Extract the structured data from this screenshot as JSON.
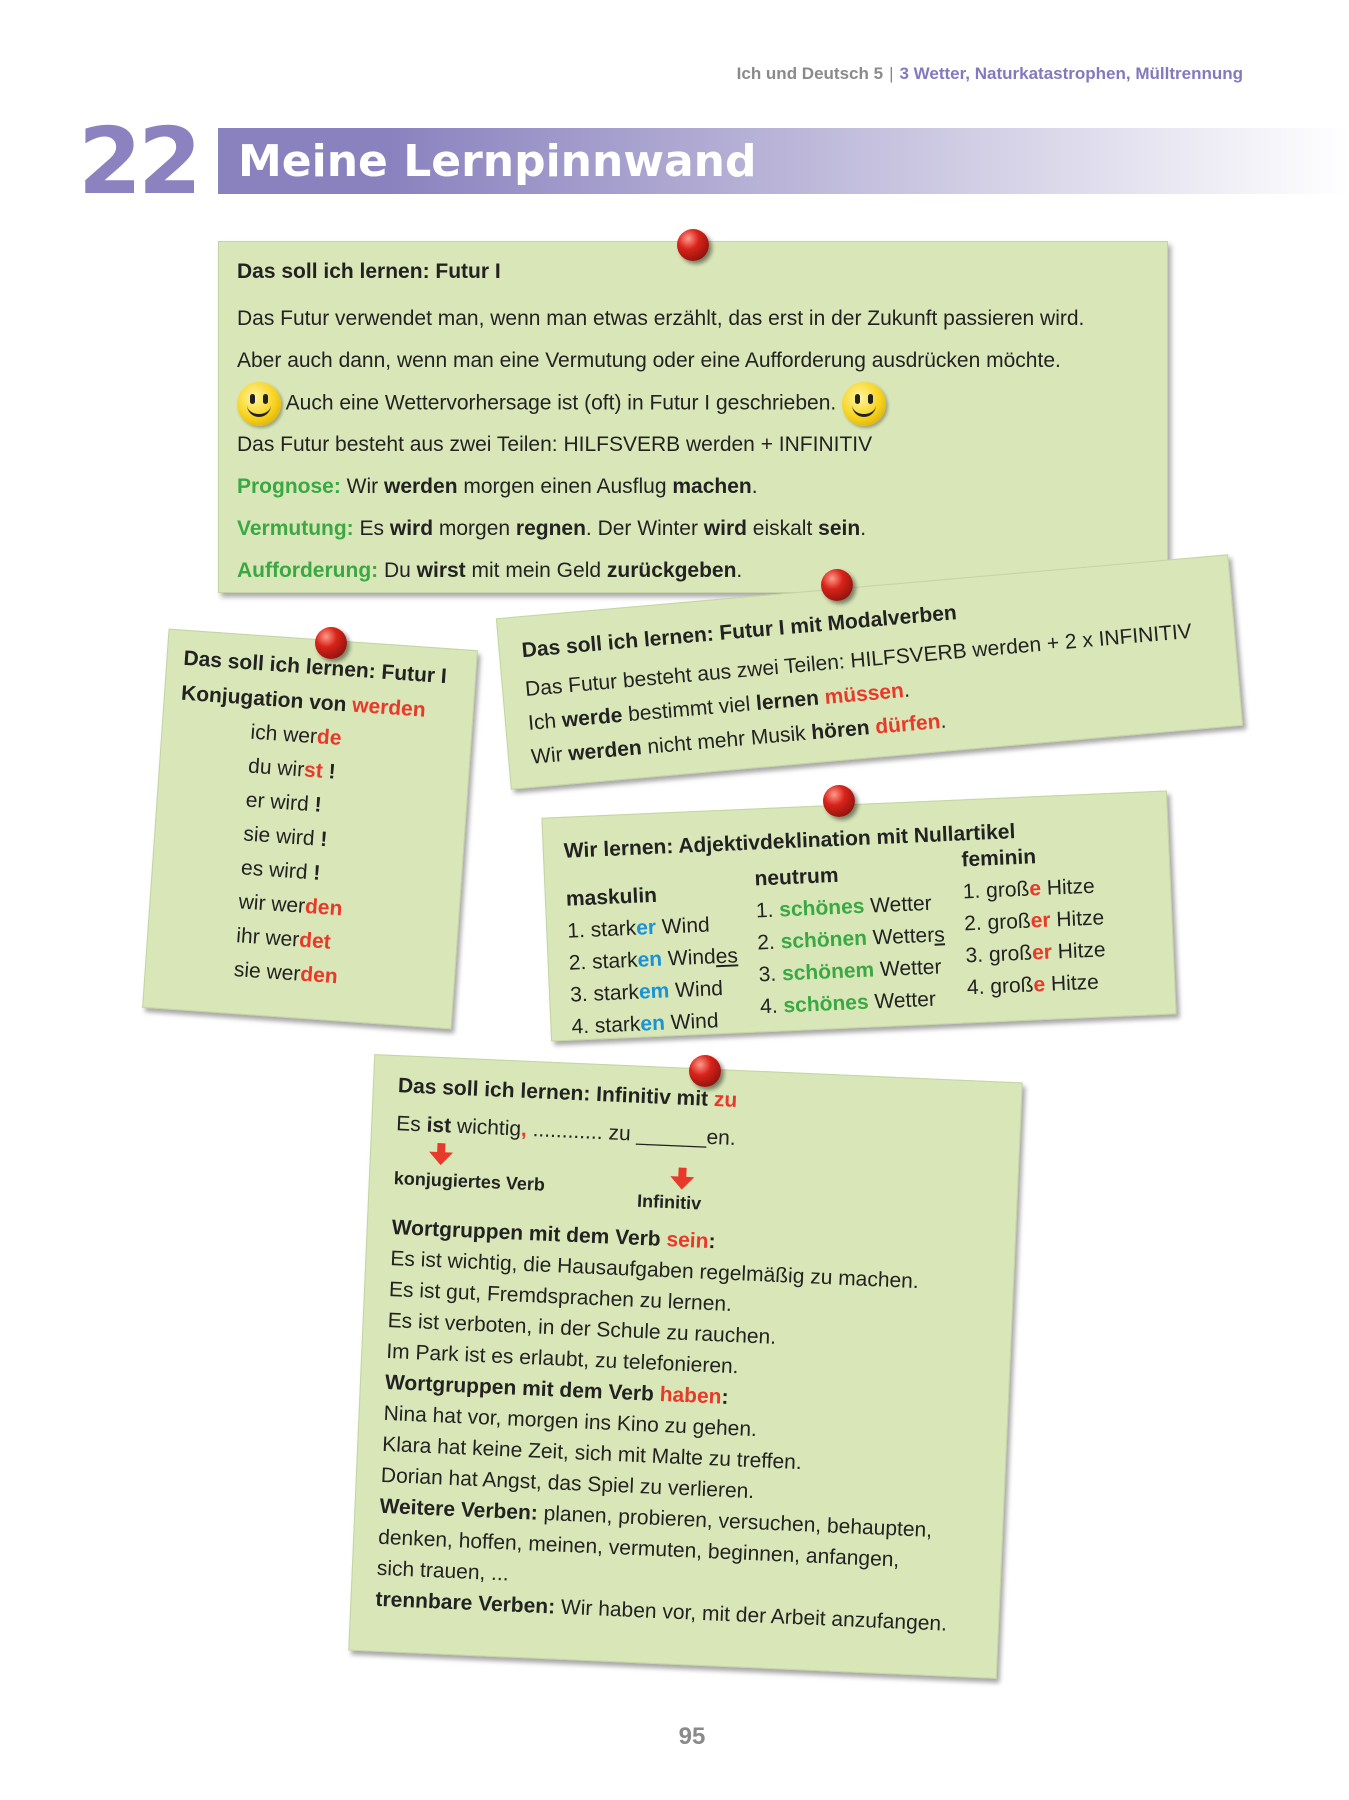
{
  "header": {
    "book": "Ich und Deutsch 5",
    "chapter": "3 Wetter, Naturkatastrophen, Mülltrennung"
  },
  "lesson": {
    "number": "22",
    "title": "Meine Lernpinnwand"
  },
  "note_futur": {
    "title": "Das soll ich lernen: Futur I",
    "lines": [
      [
        {
          "t": "Das Futur verwendet man, wenn man etwas erzählt, das erst in der Zukunft passieren wird."
        }
      ],
      [
        {
          "t": "Aber auch dann, wenn man eine Vermutung oder eine Aufforderung ausdrücken möchte."
        }
      ],
      [
        {
          "t": "SMILEY"
        },
        {
          "t": " Auch eine Wettervorhersage ist (oft) in Futur I geschrieben. "
        },
        {
          "t": "SMILEY"
        }
      ],
      [
        {
          "t": "Das Futur besteht aus zwei Teilen: HILFSVERB werden + INFINITIV"
        }
      ],
      [
        {
          "t": "Prognose:",
          "s": "g"
        },
        {
          "t": " Wir "
        },
        {
          "t": "werden",
          "s": "b"
        },
        {
          "t": " morgen einen Ausflug "
        },
        {
          "t": "machen",
          "s": "b"
        },
        {
          "t": "."
        }
      ],
      [
        {
          "t": "Vermutung:",
          "s": "g"
        },
        {
          "t": " Es "
        },
        {
          "t": "wird",
          "s": "b"
        },
        {
          "t": " morgen "
        },
        {
          "t": "regnen",
          "s": "b"
        },
        {
          "t": ". Der Winter "
        },
        {
          "t": "wird",
          "s": "b"
        },
        {
          "t": " eiskalt "
        },
        {
          "t": "sein",
          "s": "b"
        },
        {
          "t": "."
        }
      ],
      [
        {
          "t": "Aufforderung:",
          "s": "g"
        },
        {
          "t": " Du "
        },
        {
          "t": "wirst",
          "s": "b"
        },
        {
          "t": " mit mein Geld "
        },
        {
          "t": "zurückgeben",
          "s": "b"
        },
        {
          "t": "."
        }
      ]
    ]
  },
  "note_modal": {
    "title": "Das soll ich lernen: Futur I mit Modalverben",
    "lines": [
      [
        {
          "t": "Das Futur besteht aus zwei Teilen: HILFSVERB werden + 2 x INFINITIV"
        }
      ],
      [
        {
          "t": "Ich "
        },
        {
          "t": "werde",
          "s": "b"
        },
        {
          "t": " bestimmt viel "
        },
        {
          "t": "lernen",
          "s": "b"
        },
        {
          "t": " "
        },
        {
          "t": "müssen",
          "s": "r"
        },
        {
          "t": "."
        }
      ],
      [
        {
          "t": "Wir "
        },
        {
          "t": "werden",
          "s": "b"
        },
        {
          "t": " nicht mehr Musik "
        },
        {
          "t": "hören",
          "s": "b"
        },
        {
          "t": " "
        },
        {
          "t": "dürfen",
          "s": "r"
        },
        {
          "t": "."
        }
      ]
    ]
  },
  "note_konj": {
    "title": "Das soll ich lernen: Futur I",
    "lines": [
      [
        {
          "t": "Konjugation von ",
          "s": "b"
        },
        {
          "t": "werden",
          "s": "r"
        }
      ],
      [
        {
          "t": "ich wer"
        },
        {
          "t": "de",
          "s": "r"
        }
      ],
      [
        {
          "t": "du wir"
        },
        {
          "t": "st",
          "s": "r"
        },
        {
          "t": " !",
          "s": "b"
        }
      ],
      [
        {
          "t": "er wird"
        },
        {
          "t": " !",
          "s": "b"
        }
      ],
      [
        {
          "t": "sie wird"
        },
        {
          "t": " !",
          "s": "b"
        }
      ],
      [
        {
          "t": "es wird"
        },
        {
          "t": " !",
          "s": "b"
        }
      ],
      [
        {
          "t": "wir wer"
        },
        {
          "t": "den",
          "s": "r"
        }
      ],
      [
        {
          "t": "ihr wer"
        },
        {
          "t": "det",
          "s": "r"
        }
      ],
      [
        {
          "t": "sie wer"
        },
        {
          "t": "den",
          "s": "r"
        }
      ]
    ]
  },
  "note_adj": {
    "title": "Wir lernen: Adjektivdeklination mit Nullartikel",
    "columns": [
      {
        "header": "maskulin",
        "rows": [
          [
            {
              "t": "1. stark"
            },
            {
              "t": "er",
              "s": "bl"
            },
            {
              "t": " Wind"
            }
          ],
          [
            {
              "t": "2. stark"
            },
            {
              "t": "en",
              "s": "bl"
            },
            {
              "t": " Wind"
            },
            {
              "t": "es",
              "s": "u"
            }
          ],
          [
            {
              "t": "3. stark"
            },
            {
              "t": "em",
              "s": "bl"
            },
            {
              "t": " Wind"
            }
          ],
          [
            {
              "t": "4. stark"
            },
            {
              "t": "en",
              "s": "bl"
            },
            {
              "t": " Wind"
            }
          ]
        ]
      },
      {
        "header": "neutrum",
        "rows": [
          [
            {
              "t": "1. "
            },
            {
              "t": "schönes",
              "s": "g"
            },
            {
              "t": " Wetter"
            }
          ],
          [
            {
              "t": "2. "
            },
            {
              "t": "schönen",
              "s": "g"
            },
            {
              "t": " Wetter"
            },
            {
              "t": "s",
              "s": "u"
            }
          ],
          [
            {
              "t": "3. "
            },
            {
              "t": "schönem",
              "s": "g"
            },
            {
              "t": " Wetter"
            }
          ],
          [
            {
              "t": "4. "
            },
            {
              "t": "schönes",
              "s": "g"
            },
            {
              "t": " Wetter"
            }
          ]
        ]
      },
      {
        "header": "feminin",
        "rows": [
          [
            {
              "t": "1. groß"
            },
            {
              "t": "e",
              "s": "r"
            },
            {
              "t": " Hitze"
            }
          ],
          [
            {
              "t": "2. groß"
            },
            {
              "t": "er",
              "s": "r"
            },
            {
              "t": " Hitze"
            }
          ],
          [
            {
              "t": "3. groß"
            },
            {
              "t": "er",
              "s": "r"
            },
            {
              "t": " Hitze"
            }
          ],
          [
            {
              "t": "4. groß"
            },
            {
              "t": "e",
              "s": "r"
            },
            {
              "t": " Hitze"
            }
          ]
        ]
      }
    ]
  },
  "note_inf": {
    "title": [
      {
        "t": "Das soll ich lernen: Infinitiv mit ",
        "s": "b"
      },
      {
        "t": "zu",
        "s": "r"
      }
    ],
    "pattern": [
      {
        "t": "Es "
      },
      {
        "t": "ist",
        "s": "b"
      },
      {
        "t": " wichtig"
      },
      {
        "t": ",",
        "s": "r"
      },
      {
        "t": " ............ zu ______en."
      }
    ],
    "label_verb": "konjugiertes Verb",
    "label_inf": "Infinitiv",
    "lines": [
      [
        {
          "t": "Wortgruppen mit dem Verb ",
          "s": "b"
        },
        {
          "t": "sein",
          "s": "r"
        },
        {
          "t": ":",
          "s": "b"
        }
      ],
      [
        {
          "t": "Es ist wichtig, die Hausaufgaben regelmäßig zu machen."
        }
      ],
      [
        {
          "t": "Es ist gut, Fremdsprachen zu lernen."
        }
      ],
      [
        {
          "t": "Es ist verboten, in der Schule zu rauchen."
        }
      ],
      [
        {
          "t": "Im Park ist es erlaubt, zu telefonieren."
        }
      ],
      [
        {
          "t": "Wortgruppen mit dem Verb ",
          "s": "b"
        },
        {
          "t": "haben",
          "s": "r"
        },
        {
          "t": ":",
          "s": "b"
        }
      ],
      [
        {
          "t": "Nina hat vor, morgen ins Kino zu gehen."
        }
      ],
      [
        {
          "t": "Klara hat keine Zeit, sich mit Malte zu treffen."
        }
      ],
      [
        {
          "t": "Dorian hat Angst, das Spiel zu verlieren."
        }
      ],
      [
        {
          "t": "Weitere Verben:",
          "s": "b"
        },
        {
          "t": " planen, probieren, versuchen, behaupten,"
        }
      ],
      [
        {
          "t": "denken, hoffen, meinen, vermuten, beginnen, anfangen,"
        }
      ],
      [
        {
          "t": "sich trauen, ..."
        }
      ],
      [
        {
          "t": "trennbare Verben:",
          "s": "b"
        },
        {
          "t": " Wir haben vor, mit der Arbeit anzufangen."
        }
      ]
    ]
  },
  "page_number": "95",
  "colors": {
    "accent": "#8a82bf",
    "note": "#d9e7b8",
    "red": "#e8392a",
    "green": "#3aa843",
    "blue": "#1a93d6"
  }
}
